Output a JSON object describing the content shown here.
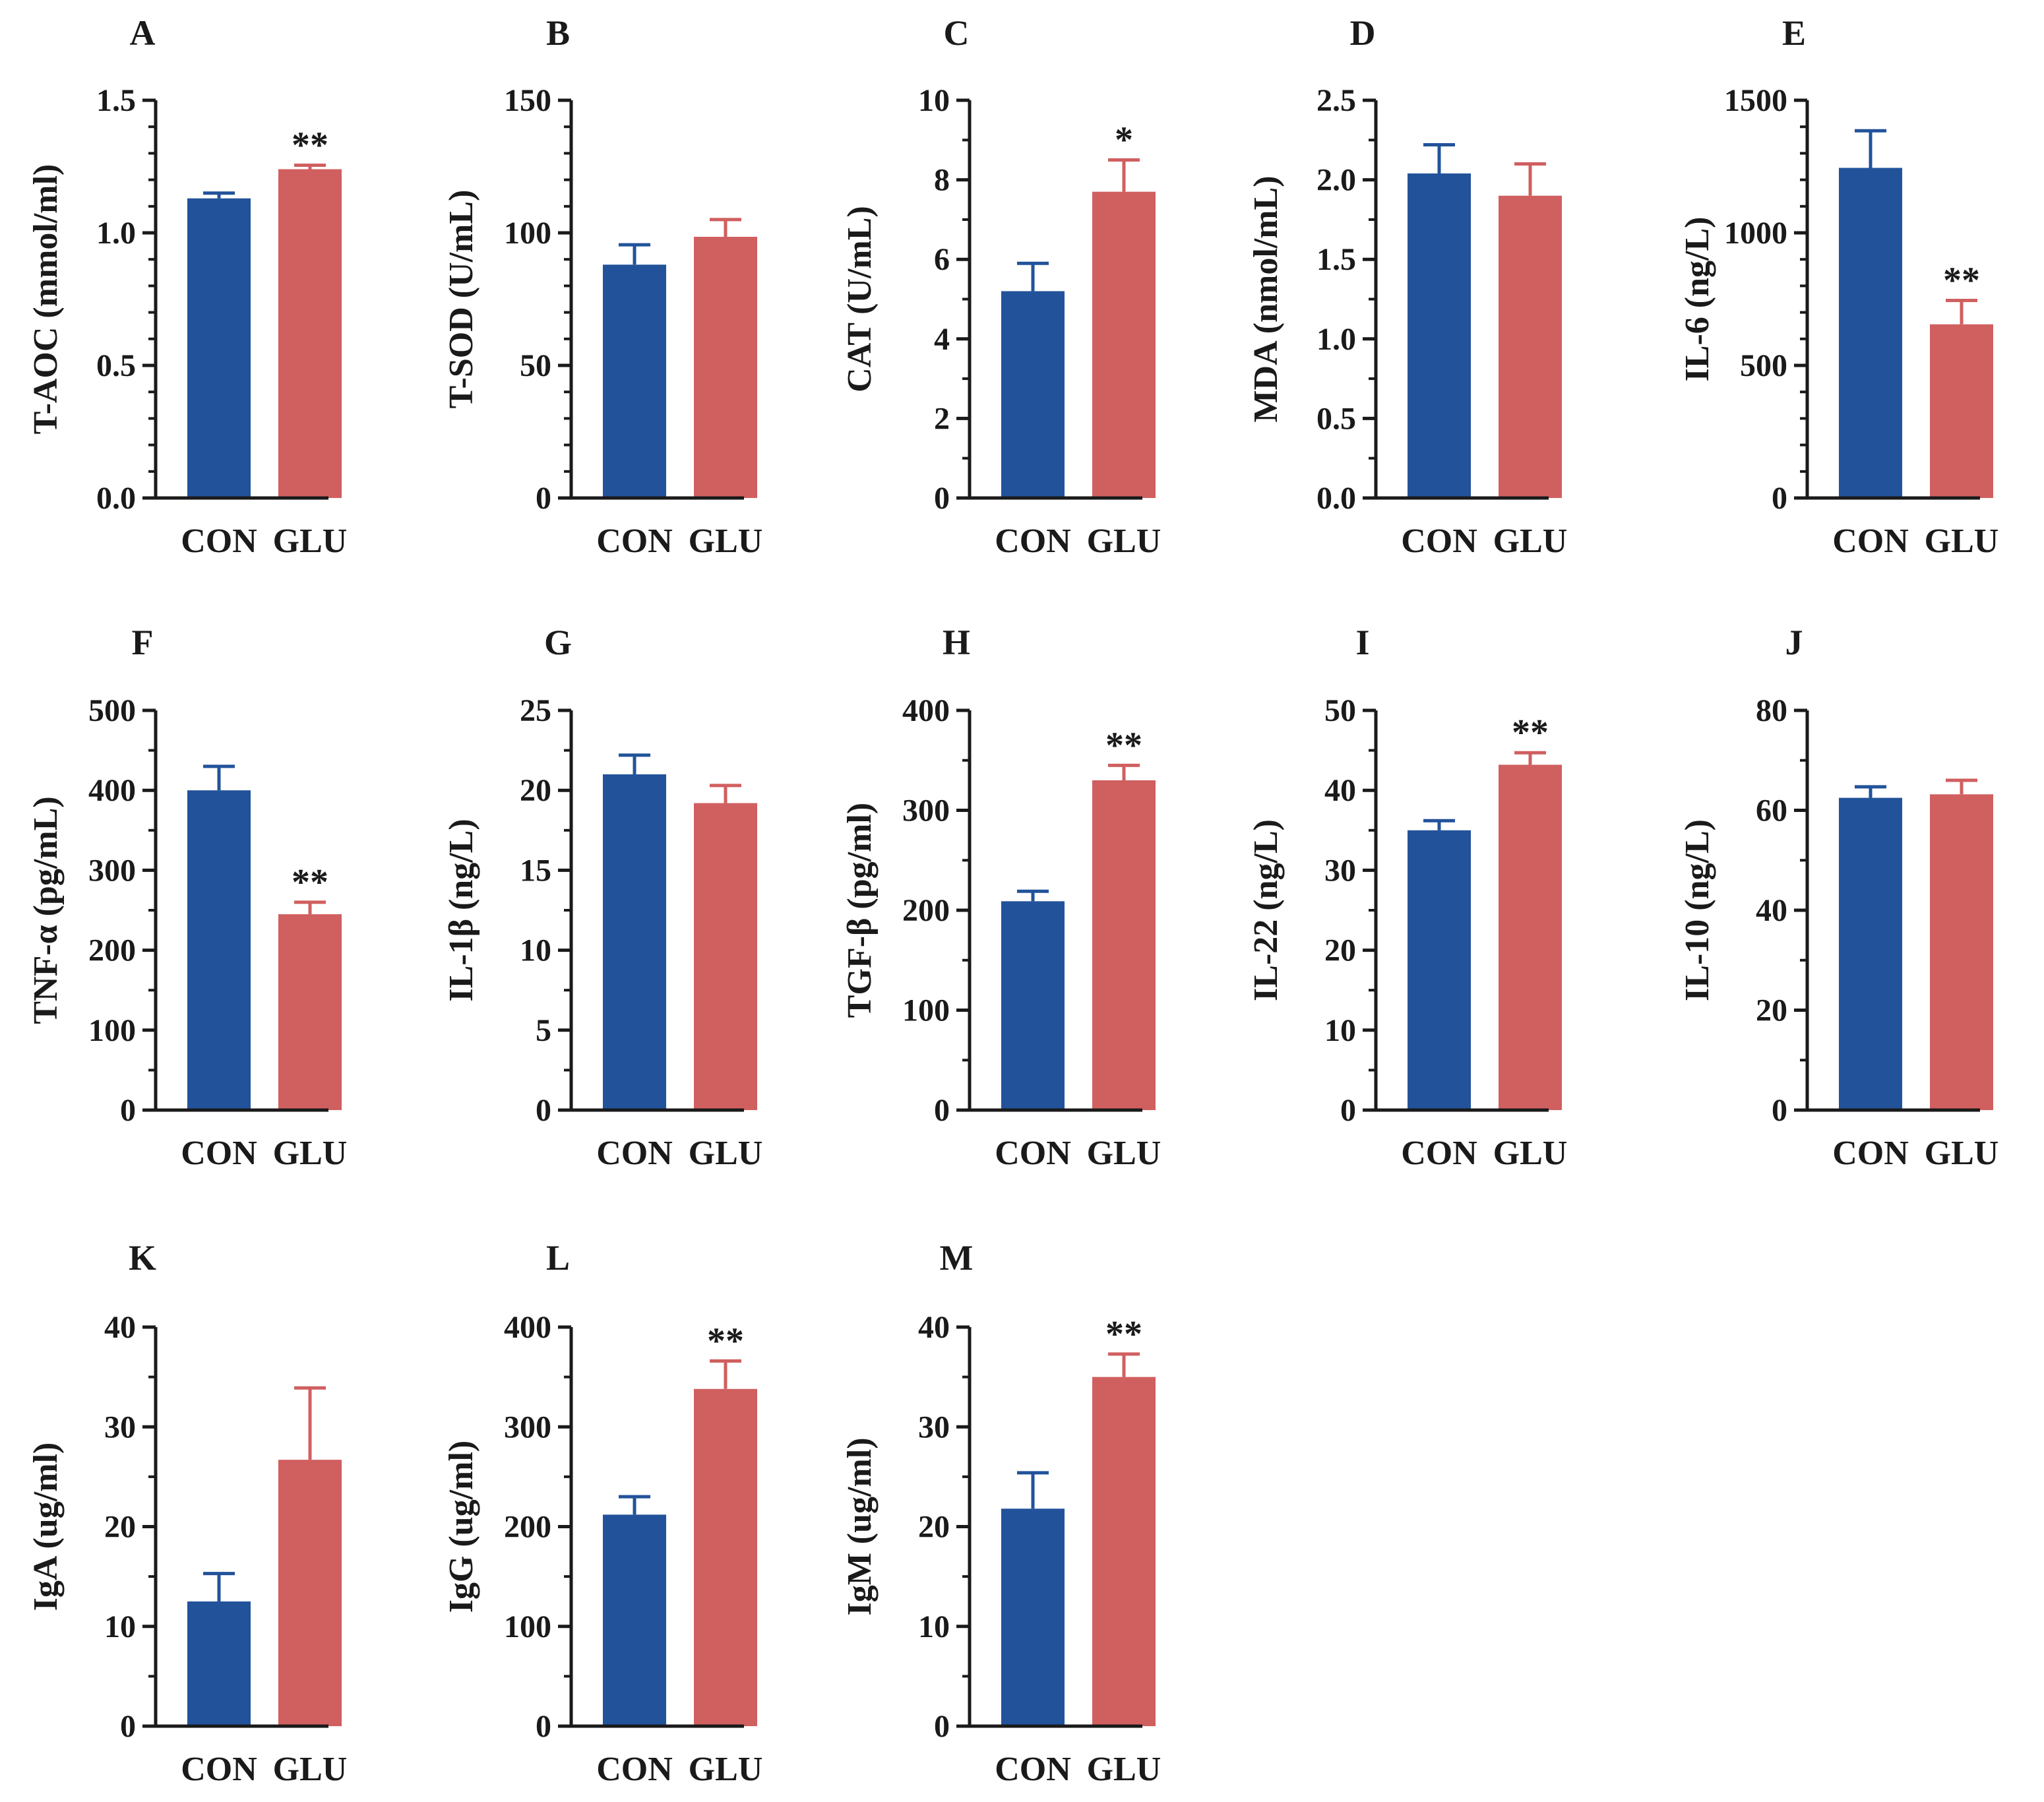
{
  "colors": {
    "con": "#22539a",
    "glu": "#d05f5f",
    "axis": "#1a1a1a"
  },
  "chart_data": [
    {
      "panel": "A",
      "type": "bar",
      "ylabel": "T-AOC (mmol/ml)",
      "categories": [
        "CON",
        "GLU"
      ],
      "values": [
        1.13,
        1.24
      ],
      "errors": [
        0.02,
        0.015
      ],
      "significance": [
        "",
        "**"
      ],
      "ylim": [
        0,
        1.5
      ],
      "yticks": [
        "0.0",
        "0.5",
        "1.0",
        "1.5"
      ]
    },
    {
      "panel": "B",
      "type": "bar",
      "ylabel": "T-SOD (U/mL)",
      "categories": [
        "CON",
        "GLU"
      ],
      "values": [
        88,
        98.5
      ],
      "errors": [
        7.5,
        6.5
      ],
      "significance": [
        "",
        ""
      ],
      "ylim": [
        0,
        150
      ],
      "yticks": [
        "0",
        "50",
        "100",
        "150"
      ]
    },
    {
      "panel": "C",
      "type": "bar",
      "ylabel": "CAT (U/mL)",
      "categories": [
        "CON",
        "GLU"
      ],
      "values": [
        5.2,
        7.7
      ],
      "errors": [
        0.7,
        0.8
      ],
      "significance": [
        "",
        "*"
      ],
      "ylim": [
        0,
        10
      ],
      "yticks": [
        "0",
        "2",
        "4",
        "6",
        "8",
        "10"
      ]
    },
    {
      "panel": "D",
      "type": "bar",
      "ylabel": "MDA (nmol/mL)",
      "categories": [
        "CON",
        "GLU"
      ],
      "values": [
        2.04,
        1.9
      ],
      "errors": [
        0.18,
        0.2
      ],
      "significance": [
        "",
        ""
      ],
      "ylim": [
        0,
        2.5
      ],
      "yticks": [
        "0.0",
        "0.5",
        "1.0",
        "1.5",
        "2.0",
        "2.5"
      ]
    },
    {
      "panel": "E",
      "type": "bar",
      "ylabel": "IL-6 (ng/L)",
      "categories": [
        "CON",
        "GLU"
      ],
      "values": [
        1245,
        655
      ],
      "errors": [
        140,
        90
      ],
      "significance": [
        "",
        "**"
      ],
      "ylim": [
        0,
        1500
      ],
      "yticks": [
        "0",
        "500",
        "1000",
        "1500"
      ]
    },
    {
      "panel": "F",
      "type": "bar",
      "ylabel": "TNF-α (pg/mL)",
      "categories": [
        "CON",
        "GLU"
      ],
      "values": [
        400,
        245
      ],
      "errors": [
        30,
        15
      ],
      "significance": [
        "",
        "**"
      ],
      "ylim": [
        0,
        500
      ],
      "yticks": [
        "0",
        "100",
        "200",
        "300",
        "400",
        "500"
      ]
    },
    {
      "panel": "G",
      "type": "bar",
      "ylabel": "IL-1β (ng/L)",
      "categories": [
        "CON",
        "GLU"
      ],
      "values": [
        21,
        19.2
      ],
      "errors": [
        1.2,
        1.1
      ],
      "significance": [
        "",
        ""
      ],
      "ylim": [
        0,
        25
      ],
      "yticks": [
        "0",
        "5",
        "10",
        "15",
        "20",
        "25"
      ]
    },
    {
      "panel": "H",
      "type": "bar",
      "ylabel": "TGF-β (pg/ml)",
      "categories": [
        "CON",
        "GLU"
      ],
      "values": [
        209,
        330
      ],
      "errors": [
        10,
        15
      ],
      "significance": [
        "",
        "**"
      ],
      "ylim": [
        0,
        400
      ],
      "yticks": [
        "0",
        "100",
        "200",
        "300",
        "400"
      ]
    },
    {
      "panel": "I",
      "type": "bar",
      "ylabel": "IL-22 (ng/L)",
      "categories": [
        "CON",
        "GLU"
      ],
      "values": [
        35,
        43.2
      ],
      "errors": [
        1.2,
        1.5
      ],
      "significance": [
        "",
        "**"
      ],
      "ylim": [
        0,
        50
      ],
      "yticks": [
        "0",
        "10",
        "20",
        "30",
        "40",
        "50"
      ]
    },
    {
      "panel": "J",
      "type": "bar",
      "ylabel": "IL-10 (ng/L)",
      "categories": [
        "CON",
        "GLU"
      ],
      "values": [
        62.5,
        63.2
      ],
      "errors": [
        2.2,
        2.8
      ],
      "significance": [
        "",
        ""
      ],
      "ylim": [
        0,
        80
      ],
      "yticks": [
        "0",
        "20",
        "40",
        "60",
        "80"
      ]
    },
    {
      "panel": "K",
      "type": "bar",
      "ylabel": "IgA (ug/ml)",
      "categories": [
        "CON",
        "GLU"
      ],
      "values": [
        12.5,
        26.7
      ],
      "errors": [
        2.8,
        7.2
      ],
      "significance": [
        "",
        ""
      ],
      "ylim": [
        0,
        40
      ],
      "yticks": [
        "0",
        "10",
        "20",
        "30",
        "40"
      ]
    },
    {
      "panel": "L",
      "type": "bar",
      "ylabel": "IgG (ug/ml)",
      "categories": [
        "CON",
        "GLU"
      ],
      "values": [
        212,
        338
      ],
      "errors": [
        18,
        28
      ],
      "significance": [
        "",
        "**"
      ],
      "ylim": [
        0,
        400
      ],
      "yticks": [
        "0",
        "100",
        "200",
        "300",
        "400"
      ]
    },
    {
      "panel": "M",
      "type": "bar",
      "ylabel": "IgM (ug/ml)",
      "categories": [
        "CON",
        "GLU"
      ],
      "values": [
        21.8,
        35
      ],
      "errors": [
        3.6,
        2.3
      ],
      "significance": [
        "",
        "**"
      ],
      "ylim": [
        0,
        40
      ],
      "yticks": [
        "0",
        "10",
        "20",
        "30",
        "40"
      ]
    }
  ]
}
